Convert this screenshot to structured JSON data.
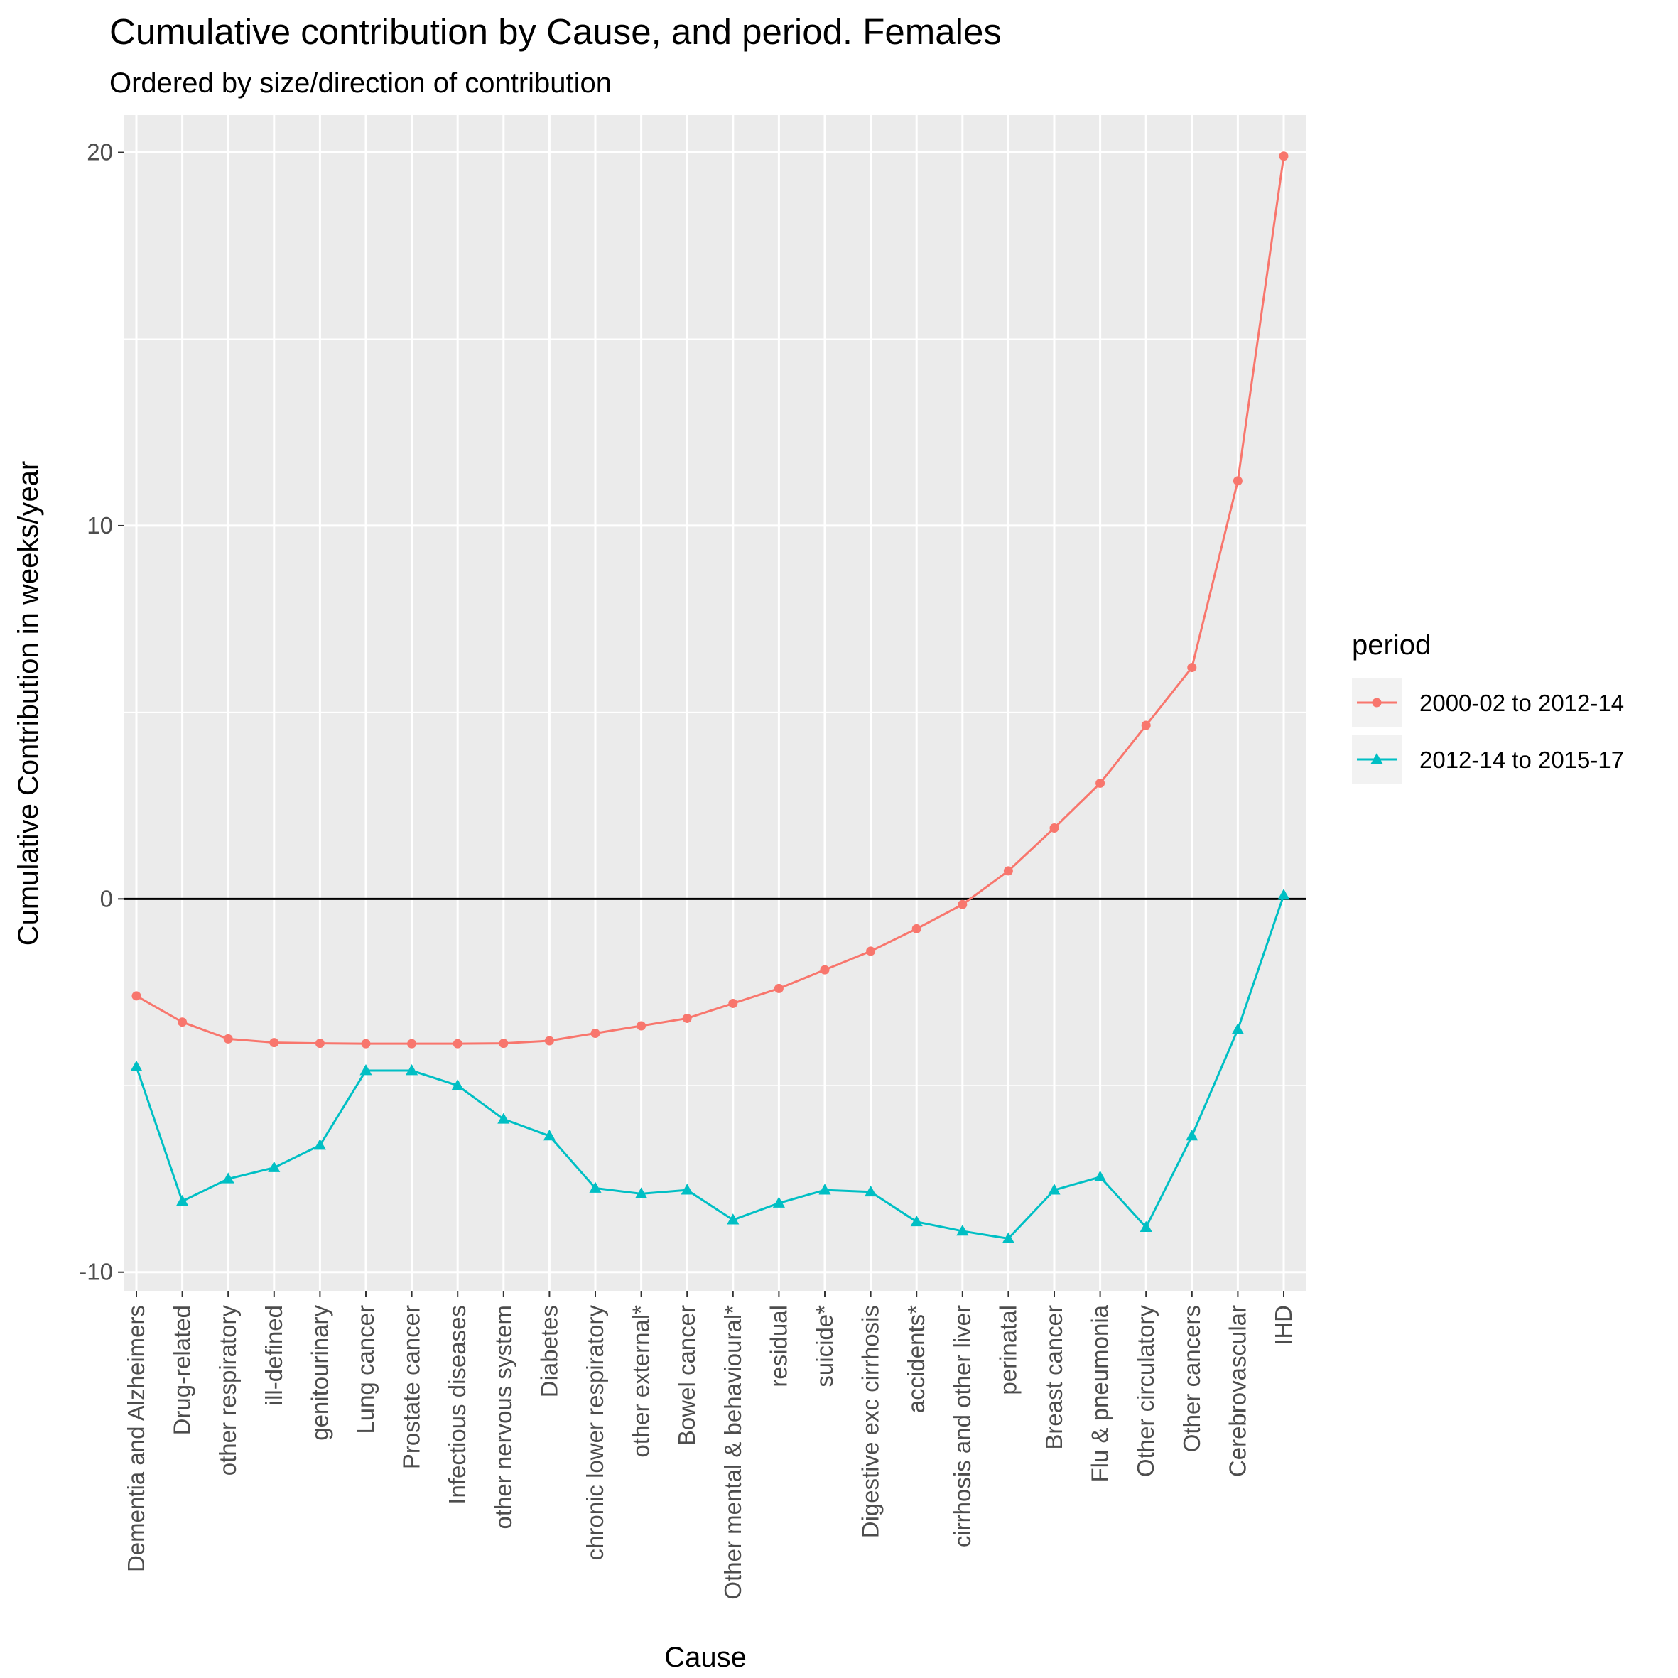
{
  "chart_data": {
    "type": "line",
    "title": "Cumulative contribution by Cause, and period. Females",
    "subtitle": "Ordered by size/direction of contribution",
    "xlabel": "Cause",
    "ylabel": "Cumulative Contribution in weeks/year",
    "ylim": [
      -10.5,
      21
    ],
    "yticks": [
      -10,
      0,
      10,
      20
    ],
    "grid": true,
    "reference_line_y": 0,
    "legend_title": "period",
    "legend_position": "right",
    "categories": [
      "Dementia and Alzheimers",
      "Drug-related",
      "other respiratory",
      "ill-defined",
      "genitourinary",
      "Lung cancer",
      "Prostate cancer",
      "Infectious diseases",
      "other nervous system",
      "Diabetes",
      "chronic lower respiratory",
      "other external*",
      "Bowel cancer",
      "Other mental & behavioural*",
      "residual",
      "suicide*",
      "Digestive exc cirrhosis",
      "accidents*",
      "cirrhosis and other liver",
      "perinatal",
      "Breast cancer",
      "Flu & pneumonia",
      "Other circulatory",
      "Other cancers",
      "Cerebrovascular",
      "IHD"
    ],
    "series": [
      {
        "name": "2000-02 to 2012-14",
        "color": "#F8766D",
        "marker": "circle",
        "values": [
          -2.6,
          -3.3,
          -3.75,
          -3.85,
          -3.87,
          -3.88,
          -3.88,
          -3.88,
          -3.87,
          -3.8,
          -3.6,
          -3.4,
          -3.2,
          -2.8,
          -2.4,
          -1.9,
          -1.4,
          -0.8,
          -0.15,
          0.75,
          1.9,
          3.1,
          4.65,
          6.2,
          11.2,
          19.9
        ]
      },
      {
        "name": "2012-14 to 2015-17",
        "color": "#00BFC4",
        "marker": "triangle",
        "values": [
          -4.5,
          -8.1,
          -7.5,
          -7.2,
          -6.6,
          -4.6,
          -4.6,
          -5.0,
          -5.9,
          -6.35,
          -7.75,
          -7.9,
          -7.8,
          -8.6,
          -8.15,
          -7.8,
          -7.85,
          -8.65,
          -8.9,
          -9.1,
          -7.8,
          -7.45,
          -8.8,
          -6.35,
          -3.5,
          0.1
        ]
      }
    ]
  }
}
